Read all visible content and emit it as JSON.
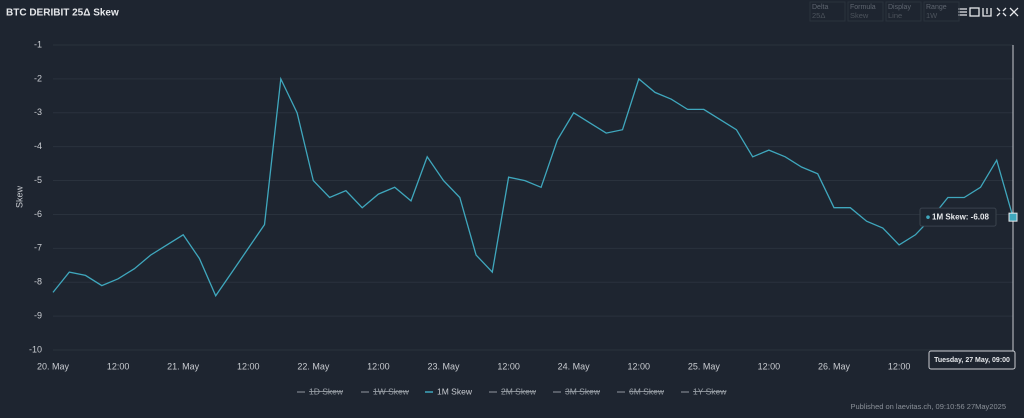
{
  "chart_data": {
    "type": "line",
    "title": "BTC DERIBIT 25Δ Skew",
    "controls": [
      {
        "label": "Delta",
        "value": "25Δ"
      },
      {
        "label": "Formula",
        "value": "Skew"
      },
      {
        "label": "Display",
        "value": "Line"
      },
      {
        "label": "Range",
        "value": "1W"
      }
    ],
    "y_label": "Skew",
    "categories": [
      "20. May",
      null,
      null,
      null,
      "12:00",
      null,
      null,
      null,
      "21. May",
      null,
      null,
      null,
      "12:00",
      null,
      null,
      null,
      "22. May",
      null,
      null,
      null,
      "12:00",
      null,
      null,
      null,
      "23. May",
      null,
      null,
      null,
      "12:00",
      null,
      null,
      null,
      "24. May",
      null,
      null,
      null,
      "12:00",
      null,
      null,
      null,
      "25. May",
      null,
      null,
      null,
      "12:00",
      null,
      null,
      null,
      "26. May",
      null,
      null,
      null,
      "12:00",
      null,
      null,
      null,
      null,
      null,
      null,
      null
    ],
    "series": [
      {
        "name": "1M Skew",
        "color": "#3fa7bd",
        "values": [
          -8.3,
          -7.7,
          -7.8,
          -8.1,
          -7.9,
          -7.6,
          -7.2,
          -6.9,
          -6.6,
          -7.3,
          -8.4,
          -7.7,
          -7.0,
          -6.3,
          -2.0,
          -3.0,
          -5.0,
          -5.5,
          -5.3,
          -5.8,
          -5.4,
          -5.2,
          -5.6,
          -4.3,
          -5.0,
          -5.5,
          -7.2,
          -7.7,
          -4.9,
          -5.0,
          -5.2,
          -3.8,
          -3.0,
          -3.3,
          -3.6,
          -3.5,
          -2.0,
          -2.4,
          -2.6,
          -2.9,
          -2.9,
          -3.2,
          -3.5,
          -4.3,
          -4.1,
          -4.3,
          -4.6,
          -4.8,
          -5.8,
          -5.8,
          -6.2,
          -6.4,
          -6.9,
          -6.6,
          -6.1,
          -5.5,
          -5.5,
          -5.2,
          -4.4,
          -6.08
        ]
      }
    ],
    "legend": [
      {
        "name": "1D Skew",
        "visible": false
      },
      {
        "name": "1W Skew",
        "visible": false
      },
      {
        "name": "1M Skew",
        "visible": true
      },
      {
        "name": "2M Skew",
        "visible": false
      },
      {
        "name": "3M Skew",
        "visible": false
      },
      {
        "name": "6M Skew",
        "visible": false
      },
      {
        "name": "1Y Skew",
        "visible": false
      }
    ],
    "ylim": [
      -10,
      -1
    ],
    "yticks": [
      -1,
      -2,
      -3,
      -4,
      -5,
      -6,
      -7,
      -8,
      -9,
      -10
    ],
    "grid": true,
    "tooltip": {
      "date": "Tuesday, 27 May, 09:00",
      "text": "1M Skew: -6.08"
    },
    "footer": "Published on laevitas.ch, 09:10:56 27May2025"
  }
}
